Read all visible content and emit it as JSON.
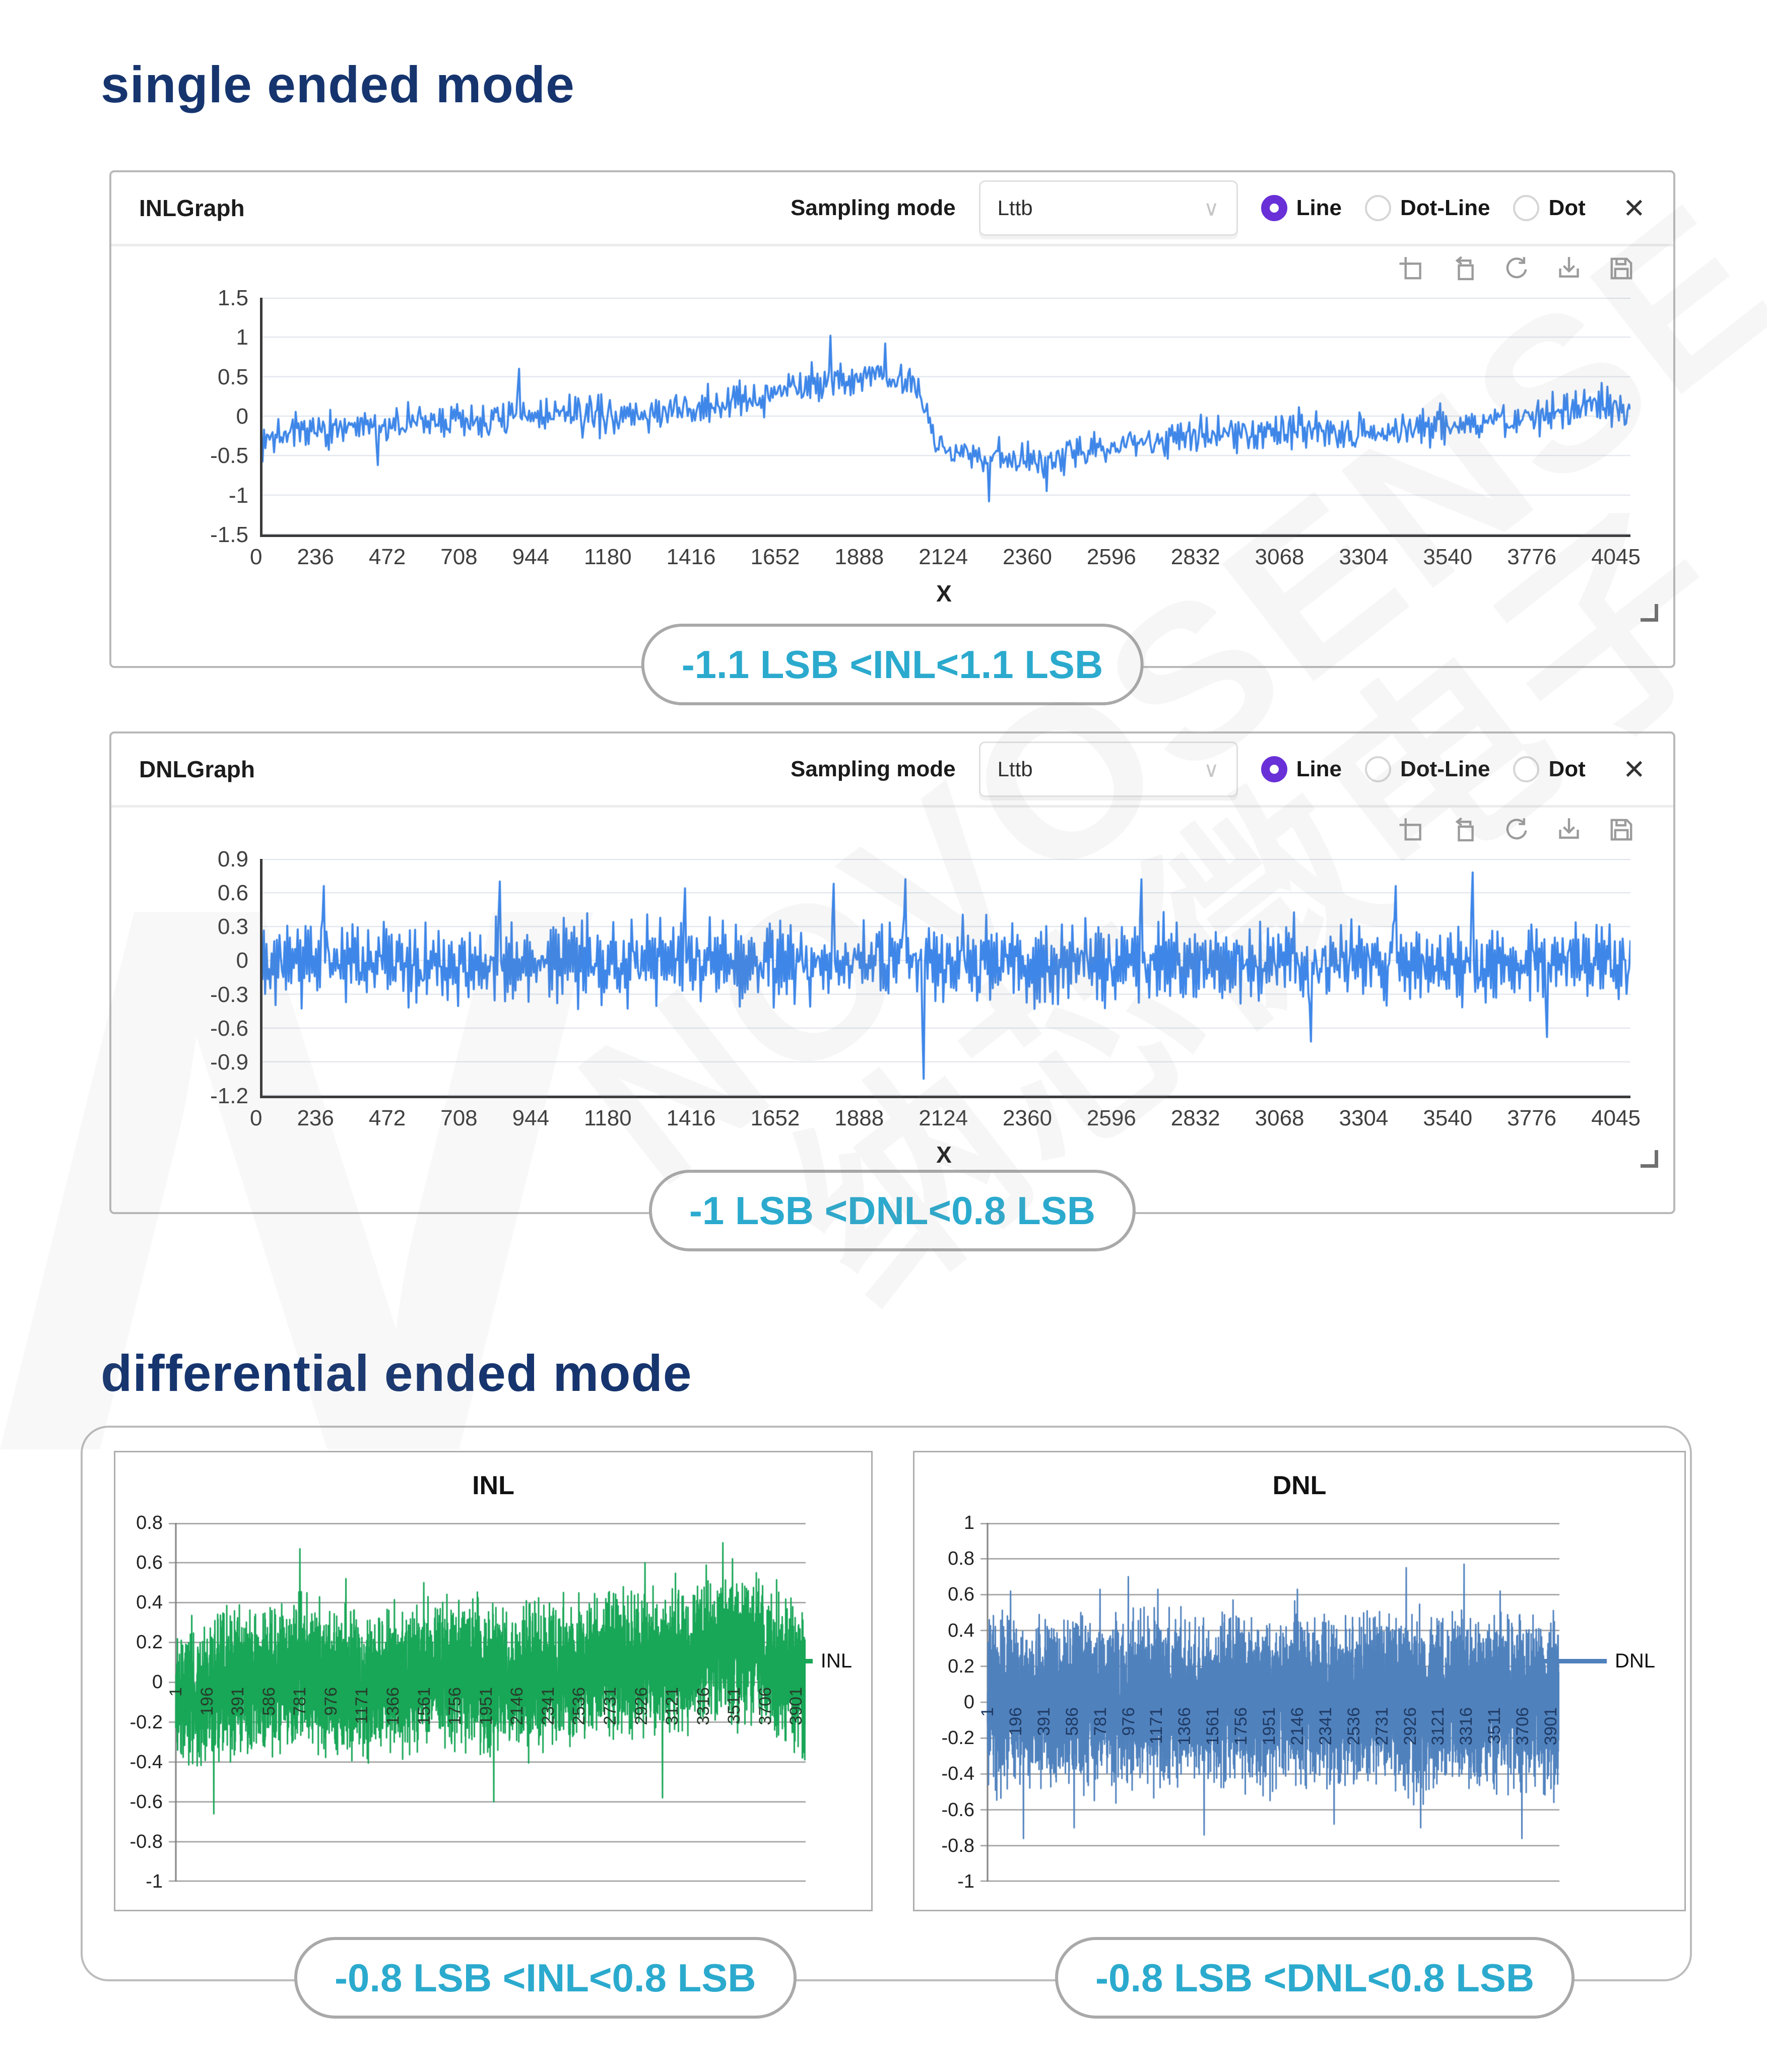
{
  "sections": {
    "single": {
      "title": "single ended mode"
    },
    "differential": {
      "title": "differential ended mode"
    }
  },
  "watermark": {
    "line1": "NOVOSENSE",
    "line2": "纳芯微电子",
    "letter": "N"
  },
  "ui": {
    "chevron": "∨",
    "close": "✕"
  },
  "panels": [
    {
      "title": "INLGraph",
      "sampling_label": "Sampling mode",
      "sampling_value": "Lttb",
      "radios": [
        {
          "label": "Line",
          "selected": true
        },
        {
          "label": "Dot-Line",
          "selected": false
        },
        {
          "label": "Dot",
          "selected": false
        }
      ],
      "caption": "-1.1 LSB <INL<1.1 LSB"
    },
    {
      "title": "DNLGraph",
      "sampling_label": "Sampling mode",
      "sampling_value": "Lttb",
      "radios": [
        {
          "label": "Line",
          "selected": true
        },
        {
          "label": "Dot-Line",
          "selected": false
        },
        {
          "label": "Dot",
          "selected": false
        }
      ],
      "caption": "-1 LSB <DNL<0.8 LSB"
    }
  ],
  "diff_captions": [
    "-0.8 LSB <INL<0.8 LSB",
    "-0.8 LSB <DNL<0.8 LSB"
  ],
  "chart_data": [
    {
      "id": "inl-single-ended",
      "type": "line",
      "title": "INLGraph",
      "xlabel": "X",
      "x_ticks": [
        "0",
        "236",
        "472",
        "708",
        "944",
        "1180",
        "1416",
        "1652",
        "1888",
        "2124",
        "2360",
        "2596",
        "2832",
        "3068",
        "3304",
        "3540",
        "3776",
        "4045"
      ],
      "y_ticks": [
        "1.5",
        "1",
        "0.5",
        "0",
        "-0.5",
        "-1",
        "-1.5"
      ],
      "xlim": [
        0,
        4045
      ],
      "ylim": [
        -1.5,
        1.5
      ],
      "color": "#3E86E8",
      "grid_color": "#dde2ea",
      "summary": "-1.1 LSB < INL < 1.1 LSB",
      "points": 950,
      "seed": 7,
      "noise": 0.15,
      "zigzag": 0.07,
      "clamp": [
        -1.12,
        1.05
      ],
      "envelope": [
        [
          0,
          -0.28
        ],
        [
          150,
          -0.2
        ],
        [
          400,
          -0.1
        ],
        [
          700,
          -0.04
        ],
        [
          900,
          0.03
        ],
        [
          1100,
          0.0
        ],
        [
          1300,
          0.1
        ],
        [
          1450,
          0.22
        ],
        [
          1600,
          0.42
        ],
        [
          1750,
          0.47
        ],
        [
          1900,
          0.45
        ],
        [
          1945,
          0.4
        ],
        [
          1990,
          -0.38
        ],
        [
          2100,
          -0.5
        ],
        [
          2250,
          -0.55
        ],
        [
          2400,
          -0.47
        ],
        [
          2550,
          -0.32
        ],
        [
          2700,
          -0.28
        ],
        [
          2900,
          -0.22
        ],
        [
          3100,
          -0.17
        ],
        [
          3300,
          -0.2
        ],
        [
          3500,
          -0.1
        ],
        [
          3700,
          -0.05
        ],
        [
          3850,
          0.05
        ],
        [
          3950,
          0.17
        ],
        [
          4045,
          0.02
        ]
      ],
      "spikes": [
        {
          "x": 760,
          "y": 0.6
        },
        {
          "x": 1680,
          "y": 1.02
        },
        {
          "x": 1840,
          "y": 0.92
        },
        {
          "x": 340,
          "y": -0.62
        },
        {
          "x": 2150,
          "y": -1.08
        },
        {
          "x": 2320,
          "y": -0.95
        }
      ]
    },
    {
      "id": "dnl-single-ended",
      "type": "line",
      "title": "DNLGraph",
      "xlabel": "X",
      "x_ticks": [
        "0",
        "236",
        "472",
        "708",
        "944",
        "1180",
        "1416",
        "1652",
        "1888",
        "2124",
        "2360",
        "2596",
        "2832",
        "3068",
        "3304",
        "3540",
        "3776",
        "4045"
      ],
      "y_ticks": [
        "0.9",
        "0.6",
        "0.3",
        "0",
        "-0.3",
        "-0.6",
        "-0.9",
        "-1.2"
      ],
      "xlim": [
        0,
        4045
      ],
      "ylim": [
        -1.2,
        0.9
      ],
      "color": "#3E86E8",
      "grid_color": "#dde2ea",
      "summary": "-1 LSB < DNL < 0.8 LSB",
      "points": 1050,
      "seed": 11,
      "noise": 0.17,
      "zigzag": 0.2,
      "clamp": [
        -1.06,
        0.8
      ],
      "envelope": [
        [
          0,
          -0.02
        ],
        [
          4045,
          -0.02
        ]
      ],
      "spikes": [
        {
          "x": 180,
          "y": 0.66
        },
        {
          "x": 700,
          "y": 0.7
        },
        {
          "x": 1250,
          "y": 0.64
        },
        {
          "x": 1690,
          "y": 0.68
        },
        {
          "x": 1900,
          "y": 0.72
        },
        {
          "x": 1955,
          "y": -1.05
        },
        {
          "x": 2600,
          "y": 0.72
        },
        {
          "x": 3100,
          "y": -0.72
        },
        {
          "x": 3350,
          "y": 0.66
        },
        {
          "x": 3580,
          "y": 0.78
        },
        {
          "x": 3800,
          "y": -0.68
        }
      ]
    },
    {
      "id": "inl-differential",
      "type": "line",
      "title": "INL",
      "legend": "INL",
      "x_ticks": [
        "1",
        "196",
        "391",
        "586",
        "781",
        "976",
        "1171",
        "1366",
        "1561",
        "1756",
        "1951",
        "2146",
        "2341",
        "2536",
        "2731",
        "2926",
        "3121",
        "3316",
        "3511",
        "3706",
        "3901"
      ],
      "y_ticks": [
        "0.8",
        "0.6",
        "0.4",
        "0.2",
        "0",
        "-0.2",
        "-0.4",
        "-0.6",
        "-0.8",
        "-1"
      ],
      "xlim": [
        1,
        3960
      ],
      "ylim": [
        -1,
        0.8
      ],
      "color": "#18A657",
      "grid_color": "#9a9a9a",
      "label_color": "#263c2a",
      "summary": "-0.8 LSB < INL < 0.8 LSB",
      "points": 3600,
      "seed": 21,
      "noise": 0.17,
      "zigzag": 0.17,
      "clamp": [
        -0.85,
        0.72
      ],
      "envelope": [
        [
          1,
          -0.08
        ],
        [
          300,
          -0.02
        ],
        [
          600,
          0.02
        ],
        [
          800,
          0.06
        ],
        [
          1000,
          -0.02
        ],
        [
          1300,
          0.0
        ],
        [
          1600,
          0.06
        ],
        [
          1900,
          0.03
        ],
        [
          2100,
          0.0
        ],
        [
          2400,
          0.03
        ],
        [
          2700,
          0.09
        ],
        [
          3000,
          0.1
        ],
        [
          3300,
          0.13
        ],
        [
          3500,
          0.2
        ],
        [
          3700,
          0.12
        ],
        [
          3960,
          0.0
        ]
      ],
      "spikes": [
        {
          "x": 781,
          "y": 0.67
        },
        {
          "x": 240,
          "y": -0.66
        },
        {
          "x": 1070,
          "y": 0.52
        },
        {
          "x": 1560,
          "y": 0.5
        },
        {
          "x": 2000,
          "y": -0.6
        },
        {
          "x": 2950,
          "y": 0.6
        },
        {
          "x": 3440,
          "y": 0.7
        },
        {
          "x": 3500,
          "y": 0.62
        },
        {
          "x": 3060,
          "y": -0.58
        },
        {
          "x": 3650,
          "y": 0.55
        }
      ]
    },
    {
      "id": "dnl-differential",
      "type": "line",
      "title": "DNL",
      "legend": "DNL",
      "x_ticks": [
        "1",
        "196",
        "391",
        "586",
        "781",
        "976",
        "1171",
        "1366",
        "1561",
        "1756",
        "1951",
        "2146",
        "2341",
        "2536",
        "2731",
        "2926",
        "3121",
        "3316",
        "3511",
        "3706",
        "3901"
      ],
      "y_ticks": [
        "1",
        "0.8",
        "0.6",
        "0.4",
        "0.2",
        "0",
        "-0.2",
        "-0.4",
        "-0.6",
        "-0.8",
        "-1"
      ],
      "xlim": [
        1,
        3960
      ],
      "ylim": [
        -1,
        1
      ],
      "color": "#4F81BD",
      "grid_color": "#9a9a9a",
      "label_color": "#1f3a63",
      "summary": "-0.8 LSB < DNL < 0.8 LSB",
      "points": 3600,
      "seed": 33,
      "noise": 0.2,
      "zigzag": 0.26,
      "clamp": [
        -0.8,
        0.78
      ],
      "envelope": [
        [
          1,
          0.0
        ],
        [
          3960,
          0.0
        ]
      ],
      "spikes": [
        {
          "x": 160,
          "y": 0.62
        },
        {
          "x": 250,
          "y": -0.76
        },
        {
          "x": 780,
          "y": 0.63
        },
        {
          "x": 976,
          "y": 0.7
        },
        {
          "x": 1180,
          "y": 0.63
        },
        {
          "x": 1700,
          "y": 0.57
        },
        {
          "x": 2146,
          "y": 0.63
        },
        {
          "x": 2900,
          "y": 0.75
        },
        {
          "x": 3300,
          "y": 0.77
        },
        {
          "x": 3550,
          "y": 0.62
        },
        {
          "x": 600,
          "y": -0.7
        },
        {
          "x": 1500,
          "y": -0.74
        },
        {
          "x": 2400,
          "y": -0.68
        },
        {
          "x": 3000,
          "y": -0.7
        },
        {
          "x": 3700,
          "y": -0.76
        }
      ]
    }
  ]
}
